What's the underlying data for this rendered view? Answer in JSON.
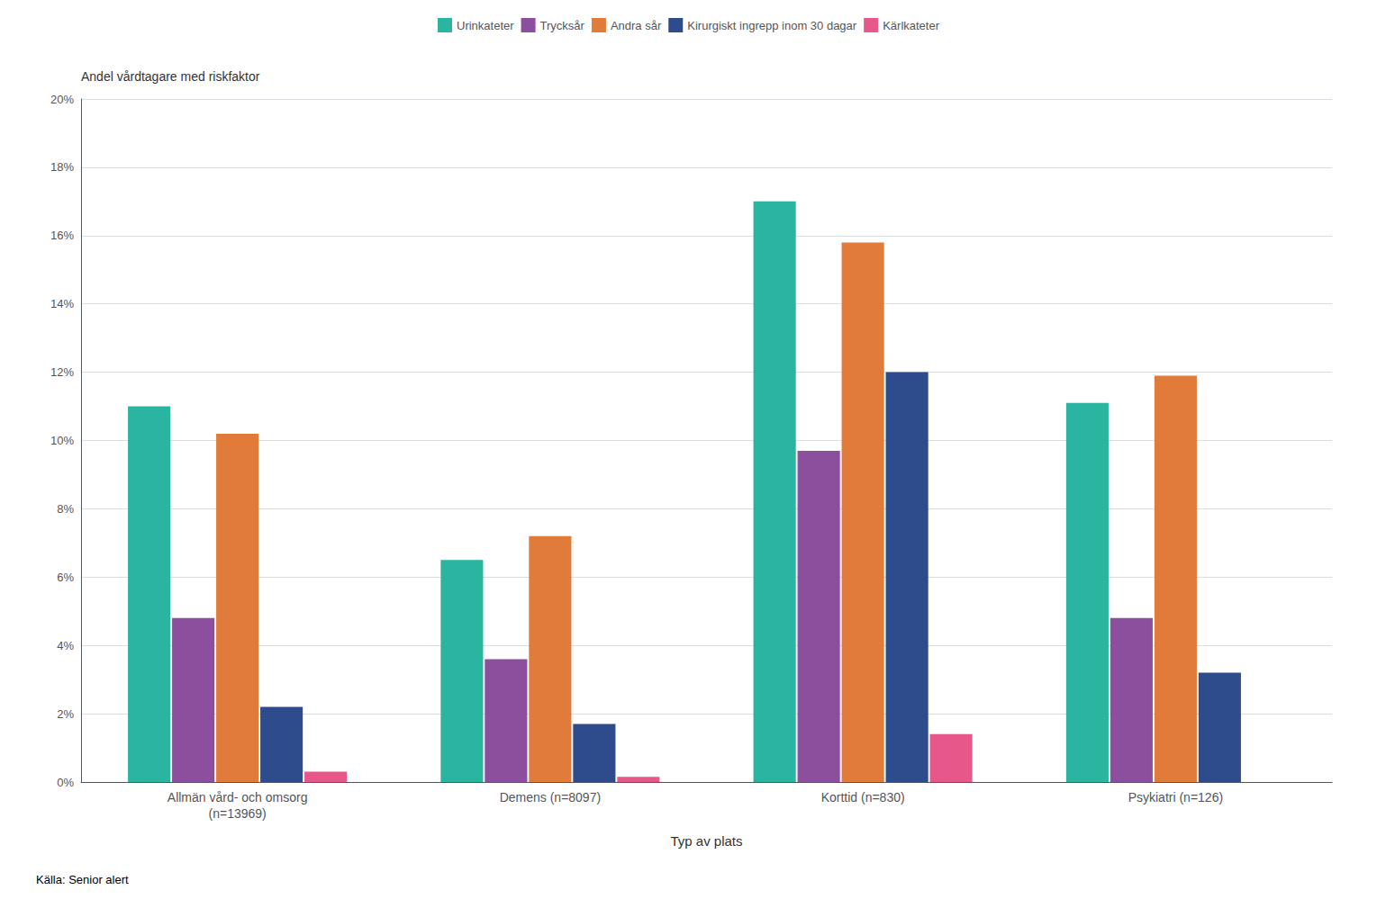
{
  "chart_data": {
    "type": "bar",
    "categories": [
      "Allmän vård- och omsorg\n(n=13969)",
      "Demens (n=8097)",
      "Korttid (n=830)",
      "Psykiatri (n=126)"
    ],
    "series": [
      {
        "name": "Urinkateter",
        "color": "#2ab5a0",
        "values": [
          11.0,
          6.5,
          17.0,
          11.1
        ]
      },
      {
        "name": "Trycksår",
        "color": "#8b4f9e",
        "values": [
          4.8,
          3.6,
          9.7,
          4.8
        ]
      },
      {
        "name": "Andra sår",
        "color": "#e07b39",
        "values": [
          10.2,
          7.2,
          15.8,
          11.9
        ]
      },
      {
        "name": "Kirurgiskt ingrepp inom 30 dagar",
        "color": "#2e4b8c",
        "values": [
          2.2,
          1.7,
          12.0,
          3.2
        ]
      },
      {
        "name": "Kärlkateter",
        "color": "#e8578a",
        "values": [
          0.3,
          0.15,
          1.4,
          0.0
        ]
      }
    ],
    "ylabel": "Andel vårdtagare med riskfaktor",
    "xlabel": "Typ av plats",
    "annotations": [
      "Källa: Senior alert"
    ],
    "ylim": [
      0,
      20
    ],
    "yticks": [
      {
        "value": 0,
        "label": "0%"
      },
      {
        "value": 2,
        "label": "2%"
      },
      {
        "value": 4,
        "label": "4%"
      },
      {
        "value": 6,
        "label": "6%"
      },
      {
        "value": 8,
        "label": "8%"
      },
      {
        "value": 10,
        "label": "10%"
      },
      {
        "value": 12,
        "label": "12%"
      },
      {
        "value": 14,
        "label": "14%"
      },
      {
        "value": 16,
        "label": "16%"
      },
      {
        "value": 18,
        "label": "18%"
      },
      {
        "value": 20,
        "label": "20%"
      }
    ],
    "grid": true,
    "legend": "top"
  }
}
